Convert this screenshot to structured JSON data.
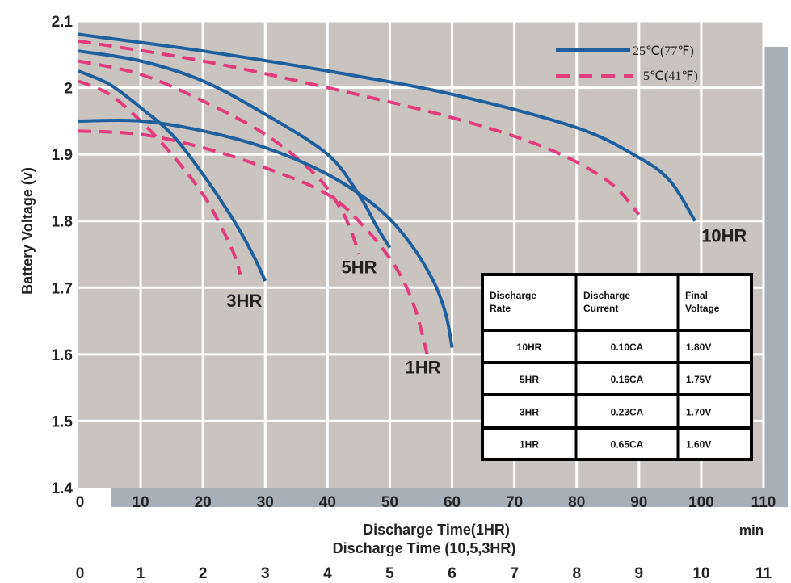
{
  "chart_data": {
    "type": "line",
    "xlabel": "Discharge Time(1HR)",
    "xlabel2": "Discharge Time (10,5,3HR)",
    "xunit": "min",
    "ylabel": "Battery Voltage (v)",
    "xlim": [
      0,
      110
    ],
    "x2lim": [
      0,
      11
    ],
    "ylim": [
      1.4,
      2.1
    ],
    "x_ticks": [
      0,
      10,
      20,
      30,
      40,
      50,
      60,
      70,
      80,
      90,
      100,
      110
    ],
    "x2_ticks": [
      0,
      1,
      2,
      3,
      4,
      5,
      6,
      7,
      8,
      9,
      10,
      11
    ],
    "y_ticks": [
      "1.4",
      "1.5",
      "1.6",
      "1.7",
      "1.8",
      "1.9",
      "2",
      "2.1"
    ],
    "grid": true,
    "legend": {
      "placement": "top-right",
      "entries": [
        {
          "name": "25℃(77℉)",
          "style": "solid",
          "color": "#1f5f9e"
        },
        {
          "name": "5℃(41℉)",
          "style": "dashed",
          "color": "#e23c7c"
        }
      ]
    },
    "series": [
      {
        "name": "10HR",
        "temp": "25℃(77℉)",
        "label": "10HR",
        "points": [
          [
            0,
            2.08
          ],
          [
            20,
            2.055
          ],
          [
            40,
            2.025
          ],
          [
            60,
            1.99
          ],
          [
            80,
            1.94
          ],
          [
            90,
            1.895
          ],
          [
            95,
            1.86
          ],
          [
            99,
            1.8
          ]
        ]
      },
      {
        "name": "10HR",
        "temp": "5℃(41℉)",
        "label": "",
        "points": [
          [
            0,
            2.07
          ],
          [
            20,
            2.04
          ],
          [
            40,
            2.0
          ],
          [
            60,
            1.955
          ],
          [
            75,
            1.91
          ],
          [
            85,
            1.86
          ],
          [
            90,
            1.81
          ]
        ]
      },
      {
        "name": "5HR",
        "temp": "25℃(77℉)",
        "label": "5HR",
        "points": [
          [
            0,
            2.055
          ],
          [
            10,
            2.04
          ],
          [
            20,
            2.01
          ],
          [
            30,
            1.96
          ],
          [
            40,
            1.9
          ],
          [
            45,
            1.84
          ],
          [
            48,
            1.79
          ],
          [
            50,
            1.76
          ]
        ]
      },
      {
        "name": "5HR",
        "temp": "5℃(41℉)",
        "label": "",
        "points": [
          [
            0,
            2.04
          ],
          [
            10,
            2.02
          ],
          [
            20,
            1.98
          ],
          [
            30,
            1.93
          ],
          [
            38,
            1.87
          ],
          [
            42,
            1.82
          ],
          [
            44,
            1.78
          ],
          [
            45,
            1.75
          ]
        ]
      },
      {
        "name": "3HR",
        "temp": "25℃(77℉)",
        "label": "3HR",
        "points": [
          [
            0,
            2.025
          ],
          [
            5,
            2.005
          ],
          [
            10,
            1.97
          ],
          [
            15,
            1.93
          ],
          [
            20,
            1.87
          ],
          [
            25,
            1.8
          ],
          [
            28,
            1.75
          ],
          [
            30,
            1.71
          ]
        ]
      },
      {
        "name": "3HR",
        "temp": "5℃(41℉)",
        "label": "",
        "points": [
          [
            0,
            2.01
          ],
          [
            5,
            1.99
          ],
          [
            10,
            1.95
          ],
          [
            15,
            1.9
          ],
          [
            20,
            1.84
          ],
          [
            23,
            1.79
          ],
          [
            25,
            1.75
          ],
          [
            26,
            1.72
          ]
        ]
      },
      {
        "name": "1HR",
        "temp": "25℃(77℉)",
        "label": "1HR",
        "points": [
          [
            0,
            1.95
          ],
          [
            10,
            1.95
          ],
          [
            20,
            1.935
          ],
          [
            30,
            1.91
          ],
          [
            40,
            1.87
          ],
          [
            48,
            1.82
          ],
          [
            53,
            1.77
          ],
          [
            57,
            1.71
          ],
          [
            59,
            1.66
          ],
          [
            60,
            1.61
          ]
        ]
      },
      {
        "name": "1HR",
        "temp": "5℃(41℉)",
        "label": "",
        "points": [
          [
            0,
            1.935
          ],
          [
            10,
            1.93
          ],
          [
            20,
            1.91
          ],
          [
            30,
            1.88
          ],
          [
            40,
            1.84
          ],
          [
            46,
            1.79
          ],
          [
            51,
            1.73
          ],
          [
            54,
            1.67
          ],
          [
            56,
            1.6
          ]
        ]
      }
    ],
    "table": {
      "headers": [
        [
          "Discharge",
          "Rate"
        ],
        [
          "Discharge",
          "Current"
        ],
        [
          "Final",
          "Voltage"
        ]
      ],
      "rows": [
        [
          "10HR",
          "0.10CA",
          "1.80V"
        ],
        [
          "5HR",
          "0.16CA",
          "1.75V"
        ],
        [
          "3HR",
          "0.23CA",
          "1.70V"
        ],
        [
          "1HR",
          "0.65CA",
          "1.60V"
        ]
      ]
    },
    "colors": {
      "plot_bg": "#c9c4c0",
      "shadow": "#a7b0b9",
      "grid": "#ffffff",
      "solid": "#1f5f9e",
      "dashed": "#e23c7c"
    }
  }
}
